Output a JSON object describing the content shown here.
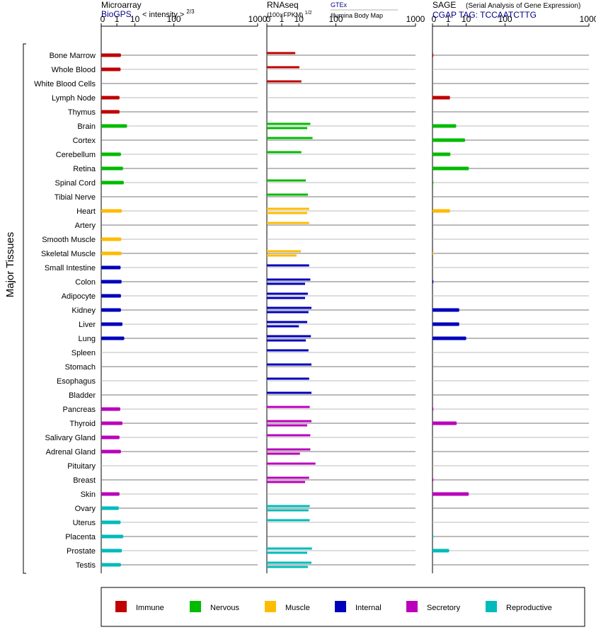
{
  "colors": {
    "Immune": "#c00000",
    "Nervous": "#00bb00",
    "Muscle": "#ffbb00",
    "Internal": "#0000bb",
    "Secretory": "#bb00bb",
    "Reproductive": "#00bbbb"
  },
  "y_axis_label": "Major Tissues",
  "panel_headers": {
    "microarray": {
      "title": "Microarray",
      "source": "BioGPS",
      "metric_prefix": "< intensity >",
      "metric_exp": "2/3"
    },
    "rnaseq": {
      "title": "RNAseq",
      "metric_prefix": "(100×FPKM)",
      "metric_exp": "1/2",
      "legend_a": "GTEx",
      "legend_b": "Illumina Body Map"
    },
    "sage": {
      "title": "SAGE",
      "subtitle": "(Serial Analysis of Gene Expression)",
      "tag_label": "CGAP TAG: TCCAATCTTG"
    }
  },
  "chart_data": {
    "type": "bar",
    "orientation": "horizontal",
    "x_scale": "power",
    "ticks": [
      0,
      1,
      10,
      100,
      1000
    ],
    "tick_labels": [
      "0",
      "1",
      "10",
      "100",
      "1000"
    ],
    "xlim": [
      0,
      1000
    ],
    "categories": [
      "Bone Marrow",
      "Whole Blood",
      "White Blood Cells",
      "Lymph Node",
      "Thymus",
      "Brain",
      "Cortex",
      "Cerebellum",
      "Retina",
      "Spinal Cord",
      "Tibial Nerve",
      "Heart",
      "Artery",
      "Smooth Muscle",
      "Skeletal Muscle",
      "Small Intestine",
      "Colon",
      "Adipocyte",
      "Kidney",
      "Liver",
      "Lung",
      "Spleen",
      "Stomach",
      "Esophagus",
      "Bladder",
      "Pancreas",
      "Thyroid",
      "Salivary Gland",
      "Adrenal Gland",
      "Pituitary",
      "Breast",
      "Skin",
      "Ovary",
      "Uterus",
      "Placenta",
      "Prostate",
      "Testis"
    ],
    "groups": [
      "Immune",
      "Immune",
      "Immune",
      "Immune",
      "Immune",
      "Nervous",
      "Nervous",
      "Nervous",
      "Nervous",
      "Nervous",
      "Nervous",
      "Muscle",
      "Muscle",
      "Muscle",
      "Muscle",
      "Internal",
      "Internal",
      "Internal",
      "Internal",
      "Internal",
      "Internal",
      "Internal",
      "Internal",
      "Internal",
      "Internal",
      "Secretory",
      "Secretory",
      "Secretory",
      "Secretory",
      "Secretory",
      "Secretory",
      "Secretory",
      "Reproductive",
      "Reproductive",
      "Reproductive",
      "Reproductive",
      "Reproductive"
    ],
    "microarray": [
      2.0,
      1.9,
      null,
      1.6,
      1.6,
      4.5,
      null,
      2.0,
      2.7,
      3.0,
      null,
      2.3,
      null,
      2.1,
      2.2,
      1.9,
      2.2,
      2.0,
      2.0,
      2.5,
      3.2,
      null,
      null,
      null,
      null,
      1.8,
      2.5,
      1.6,
      2.0,
      null,
      null,
      1.6,
      1.4,
      1.9,
      2.8,
      2.3,
      2.0
    ],
    "rnaseq_gtex": [
      null,
      null,
      null,
      null,
      null,
      25,
      null,
      null,
      null,
      null,
      null,
      23,
      null,
      null,
      12,
      23,
      25,
      null,
      27,
      null,
      26,
      null,
      null,
      null,
      null,
      null,
      null,
      null,
      null,
      null,
      23,
      null,
      null,
      null,
      null,
      null,
      null
    ],
    "rnaseq_ibm": [
      7.0,
      10.5,
      12.5,
      null,
      null,
      20,
      29,
      12.5,
      null,
      18,
      21,
      20,
      23,
      null,
      8.0,
      null,
      17,
      21,
      22,
      20,
      18,
      22,
      27,
      23,
      27,
      24,
      27,
      25,
      25,
      35,
      null,
      null,
      24,
      24,
      null,
      28,
      27
    ],
    "rnaseq_ibm2": [
      null,
      null,
      null,
      null,
      null,
      null,
      null,
      null,
      null,
      null,
      null,
      null,
      null,
      null,
      null,
      null,
      null,
      17,
      null,
      10,
      null,
      null,
      null,
      null,
      null,
      null,
      20,
      null,
      11,
      null,
      17,
      null,
      22,
      null,
      null,
      20,
      21
    ],
    "sage": [
      0.0001,
      null,
      null,
      1.4,
      null,
      3.5,
      9.0,
      1.5,
      12.5,
      0.0001,
      null,
      1.4,
      null,
      null,
      0.0001,
      null,
      0.0001,
      null,
      5.0,
      5.0,
      10.0,
      null,
      null,
      null,
      null,
      0.0001,
      3.7,
      null,
      null,
      null,
      0.0001,
      12.5,
      null,
      null,
      0.0001,
      1.2,
      null
    ]
  },
  "legend": [
    {
      "label": "Immune",
      "color": "#c00000"
    },
    {
      "label": "Nervous",
      "color": "#00bb00"
    },
    {
      "label": "Muscle",
      "color": "#ffbb00"
    },
    {
      "label": "Internal",
      "color": "#0000bb"
    },
    {
      "label": "Secretory",
      "color": "#bb00bb"
    },
    {
      "label": "Reproductive",
      "color": "#00bbbb"
    }
  ]
}
